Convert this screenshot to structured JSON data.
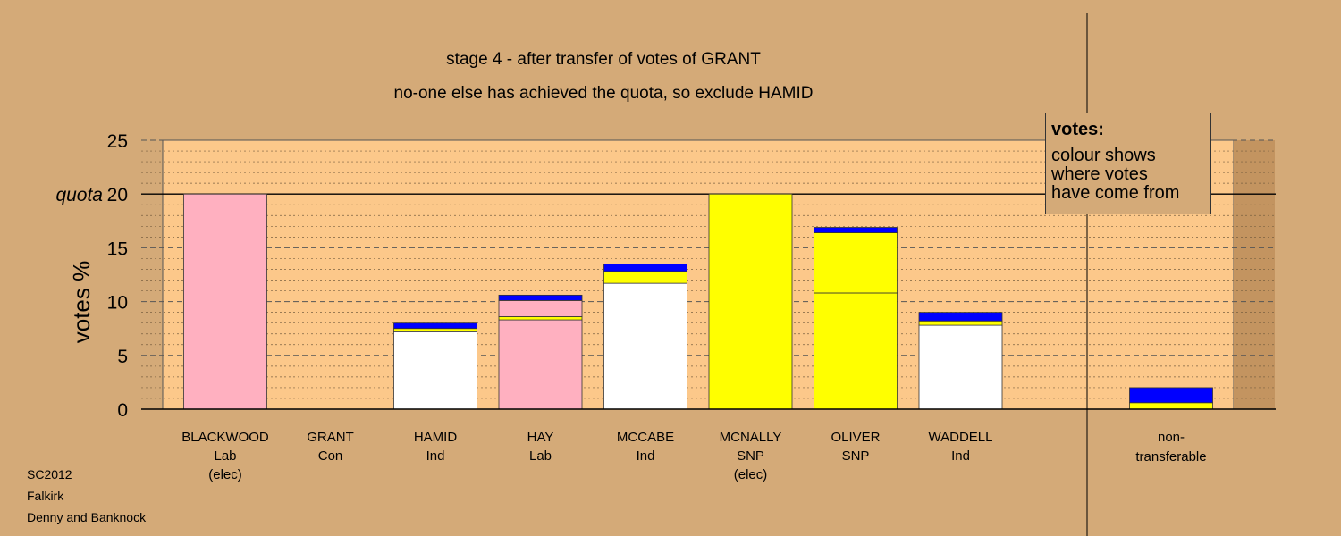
{
  "colors": {
    "background": "#d4aa78",
    "plot_area": "#fcc88a",
    "pink": "#ffb0c0",
    "white": "#ffffff",
    "yellow": "#ffff00",
    "blue": "#0000ff"
  },
  "legend": {
    "title": "votes:",
    "body": "colour shows\nwhere votes\nhave come from"
  },
  "footer": {
    "line1": "SC2012",
    "line2": "Falkirk",
    "line3": "Denny and Banknock"
  },
  "chart_data": {
    "type": "bar",
    "stacked": true,
    "title": "stage 4 - after transfer of votes of GRANT",
    "subtitle": "no-one else has achieved the quota, so exclude HAMID",
    "ylabel": "votes %",
    "ylim": [
      0,
      25
    ],
    "yticks": [
      0,
      5,
      10,
      15,
      20,
      25
    ],
    "quota_label": "quota",
    "quota": 20,
    "grid": true,
    "candidates": [
      {
        "name": "BLACKWOOD",
        "party": "Lab",
        "note": "(elec)",
        "segments": [
          {
            "color": "pink",
            "value": 20.0
          }
        ]
      },
      {
        "name": "GRANT",
        "party": "Con",
        "note": "",
        "segments": []
      },
      {
        "name": "HAMID",
        "party": "Ind",
        "note": "",
        "segments": [
          {
            "color": "white",
            "value": 7.2
          },
          {
            "color": "yellow",
            "value": 0.3
          },
          {
            "color": "blue",
            "value": 0.5
          }
        ]
      },
      {
        "name": "HAY",
        "party": "Lab",
        "note": "",
        "segments": [
          {
            "color": "pink",
            "value": 8.3
          },
          {
            "color": "yellow",
            "value": 0.3
          },
          {
            "color": "pink",
            "value": 1.5
          },
          {
            "color": "blue",
            "value": 0.5
          }
        ]
      },
      {
        "name": "MCCABE",
        "party": "Ind",
        "note": "",
        "segments": [
          {
            "color": "white",
            "value": 11.7
          },
          {
            "color": "yellow",
            "value": 1.1
          },
          {
            "color": "blue",
            "value": 0.7
          }
        ]
      },
      {
        "name": "MCNALLY",
        "party": "SNP",
        "note": "(elec)",
        "segments": [
          {
            "color": "yellow",
            "value": 20.0
          }
        ]
      },
      {
        "name": "OLIVER",
        "party": "SNP",
        "note": "",
        "segments": [
          {
            "color": "yellow",
            "value": 10.8
          },
          {
            "color": "yellow",
            "value": 5.6
          },
          {
            "color": "blue",
            "value": 0.5
          }
        ]
      },
      {
        "name": "WADDELL",
        "party": "Ind",
        "note": "",
        "segments": [
          {
            "color": "white",
            "value": 7.8
          },
          {
            "color": "yellow",
            "value": 0.4
          },
          {
            "color": "blue",
            "value": 0.8
          }
        ]
      }
    ],
    "nontransferable": {
      "label_line1": "non-",
      "label_line2": "transferable",
      "segments": [
        {
          "color": "yellow",
          "value": 0.6
        },
        {
          "color": "blue",
          "value": 1.4
        }
      ]
    }
  }
}
